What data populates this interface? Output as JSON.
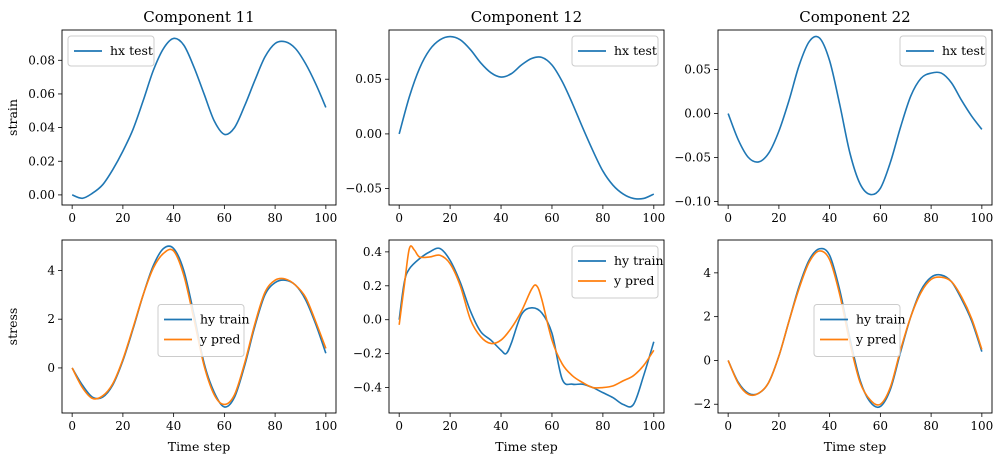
{
  "chart_data": [
    {
      "type": "line",
      "id": "p11",
      "title": "Component 11",
      "xlabel": "",
      "ylabel": "strain",
      "xlim": [
        -4,
        104
      ],
      "ylim": [
        -0.006,
        0.098
      ],
      "xticks": [
        0,
        20,
        40,
        60,
        80,
        100
      ],
      "yticks": [
        0.0,
        0.02,
        0.04,
        0.06,
        0.08
      ],
      "ytick_labels": [
        "0.00",
        "0.02",
        "0.04",
        "0.06",
        "0.08"
      ],
      "legend": "top-left",
      "series": [
        {
          "name": "hx test",
          "color": "#1f77b4",
          "x": [
            0,
            4,
            8,
            12,
            16,
            20,
            24,
            28,
            32,
            36,
            40,
            44,
            48,
            52,
            56,
            60,
            64,
            68,
            72,
            76,
            80,
            84,
            88,
            92,
            96,
            100
          ],
          "y": [
            0.0,
            -0.002,
            0.001,
            0.006,
            0.015,
            0.026,
            0.039,
            0.056,
            0.074,
            0.087,
            0.093,
            0.089,
            0.076,
            0.06,
            0.044,
            0.036,
            0.04,
            0.053,
            0.068,
            0.082,
            0.09,
            0.091,
            0.087,
            0.078,
            0.066,
            0.052
          ]
        }
      ]
    },
    {
      "type": "line",
      "id": "p12",
      "title": "Component 12",
      "xlabel": "",
      "ylabel": "",
      "xlim": [
        -4,
        104
      ],
      "ylim": [
        -0.065,
        0.095
      ],
      "xticks": [
        0,
        20,
        40,
        60,
        80,
        100
      ],
      "yticks": [
        0.05,
        0.0,
        -0.05
      ],
      "ytick_labels": [
        "0.05",
        "0.00",
        "−0.05"
      ],
      "legend": "top-right",
      "series": [
        {
          "name": "hx test",
          "color": "#1f77b4",
          "x": [
            0,
            4,
            8,
            12,
            16,
            20,
            24,
            28,
            32,
            36,
            40,
            44,
            48,
            52,
            56,
            60,
            64,
            68,
            72,
            76,
            80,
            84,
            88,
            92,
            96,
            100
          ],
          "y": [
            0.0,
            0.034,
            0.06,
            0.077,
            0.086,
            0.089,
            0.086,
            0.077,
            0.065,
            0.056,
            0.052,
            0.055,
            0.063,
            0.069,
            0.07,
            0.063,
            0.048,
            0.028,
            0.006,
            -0.015,
            -0.034,
            -0.047,
            -0.055,
            -0.059,
            -0.059,
            -0.055
          ]
        }
      ]
    },
    {
      "type": "line",
      "id": "p22",
      "title": "Component 22",
      "xlabel": "",
      "ylabel": "",
      "xlim": [
        -4,
        104
      ],
      "ylim": [
        -0.104,
        0.095
      ],
      "xticks": [
        0,
        20,
        40,
        60,
        80,
        100
      ],
      "yticks": [
        0.05,
        0.0,
        -0.05,
        -0.1
      ],
      "ytick_labels": [
        "0.05",
        "0.00",
        "−0.05",
        "−0.10"
      ],
      "legend": "top-right",
      "series": [
        {
          "name": "hx test",
          "color": "#1f77b4",
          "x": [
            0,
            4,
            8,
            12,
            16,
            20,
            24,
            28,
            32,
            36,
            40,
            44,
            48,
            52,
            56,
            60,
            64,
            68,
            72,
            76,
            80,
            84,
            88,
            92,
            96,
            100
          ],
          "y": [
            0.0,
            -0.03,
            -0.05,
            -0.055,
            -0.045,
            -0.02,
            0.015,
            0.055,
            0.082,
            0.086,
            0.06,
            0.01,
            -0.045,
            -0.08,
            -0.092,
            -0.085,
            -0.055,
            -0.015,
            0.02,
            0.04,
            0.046,
            0.046,
            0.035,
            0.015,
            -0.003,
            -0.018
          ]
        }
      ]
    },
    {
      "type": "line",
      "id": "s11",
      "title": "",
      "xlabel": "Time step",
      "ylabel": "stress",
      "xlim": [
        -4,
        104
      ],
      "ylim": [
        -1.85,
        5.25
      ],
      "xticks": [
        0,
        20,
        40,
        60,
        80,
        100
      ],
      "yticks": [
        0,
        2,
        4
      ],
      "ytick_labels": [
        "0",
        "2",
        "4"
      ],
      "legend": "center-right",
      "series": [
        {
          "name": "hy train",
          "color": "#1f77b4",
          "x": [
            0,
            4,
            8,
            12,
            16,
            20,
            24,
            28,
            32,
            36,
            40,
            44,
            48,
            52,
            56,
            60,
            64,
            68,
            72,
            76,
            80,
            84,
            88,
            92,
            96,
            100
          ],
          "y": [
            0.0,
            -0.7,
            -1.2,
            -1.2,
            -0.7,
            0.3,
            1.6,
            3.0,
            4.2,
            4.9,
            4.9,
            4.0,
            2.2,
            0.2,
            -1.0,
            -1.6,
            -1.2,
            0.1,
            1.7,
            3.0,
            3.5,
            3.6,
            3.4,
            2.8,
            1.8,
            0.6
          ]
        },
        {
          "name": "y pred",
          "color": "#ff7f0e",
          "x": [
            0,
            4,
            8,
            12,
            16,
            20,
            24,
            28,
            32,
            36,
            40,
            44,
            48,
            52,
            56,
            60,
            64,
            68,
            72,
            76,
            80,
            84,
            88,
            92,
            96,
            100
          ],
          "y": [
            0.0,
            -0.8,
            -1.25,
            -1.15,
            -0.65,
            0.35,
            1.65,
            3.0,
            4.1,
            4.7,
            4.8,
            3.8,
            2.0,
            0.1,
            -1.1,
            -1.5,
            -1.1,
            0.2,
            1.8,
            3.1,
            3.6,
            3.65,
            3.4,
            2.9,
            1.9,
            0.8
          ]
        }
      ]
    },
    {
      "type": "line",
      "id": "s12",
      "title": "",
      "xlabel": "Time step",
      "ylabel": "",
      "xlim": [
        -4,
        104
      ],
      "ylim": [
        -0.55,
        0.47
      ],
      "xticks": [
        0,
        20,
        40,
        60,
        80,
        100
      ],
      "yticks": [
        0.4,
        0.2,
        0.0,
        -0.2,
        -0.4
      ],
      "ytick_labels": [
        "0.4",
        "0.2",
        "0.0",
        "−0.2",
        "−0.4"
      ],
      "legend": "top-right",
      "series": [
        {
          "name": "hy train",
          "color": "#1f77b4",
          "x": [
            0,
            2,
            4,
            8,
            12,
            16,
            20,
            24,
            28,
            32,
            36,
            40,
            42,
            44,
            48,
            52,
            56,
            60,
            64,
            68,
            72,
            76,
            80,
            84,
            88,
            92,
            96,
            100
          ],
          "y": [
            0.0,
            0.22,
            0.3,
            0.36,
            0.4,
            0.42,
            0.35,
            0.22,
            0.05,
            -0.07,
            -0.12,
            -0.18,
            -0.2,
            -0.14,
            0.03,
            0.07,
            0.04,
            -0.08,
            -0.35,
            -0.38,
            -0.38,
            -0.4,
            -0.43,
            -0.46,
            -0.5,
            -0.5,
            -0.33,
            -0.13
          ]
        },
        {
          "name": "y pred",
          "color": "#ff7f0e",
          "x": [
            0,
            2,
            4,
            6,
            8,
            12,
            16,
            20,
            24,
            28,
            32,
            36,
            40,
            44,
            48,
            52,
            54,
            56,
            60,
            64,
            68,
            72,
            76,
            80,
            84,
            88,
            92,
            96,
            100
          ],
          "y": [
            -0.03,
            0.2,
            0.42,
            0.41,
            0.37,
            0.37,
            0.38,
            0.33,
            0.2,
            0.0,
            -0.1,
            -0.14,
            -0.12,
            -0.05,
            0.05,
            0.18,
            0.2,
            0.12,
            -0.12,
            -0.26,
            -0.33,
            -0.37,
            -0.4,
            -0.4,
            -0.39,
            -0.36,
            -0.33,
            -0.27,
            -0.18
          ]
        }
      ]
    },
    {
      "type": "line",
      "id": "s22",
      "title": "",
      "xlabel": "Time step",
      "ylabel": "",
      "xlim": [
        -4,
        104
      ],
      "ylim": [
        -2.4,
        5.5
      ],
      "xticks": [
        0,
        20,
        40,
        60,
        80,
        100
      ],
      "yticks": [
        4,
        2,
        0,
        -2
      ],
      "ytick_labels": [
        "4",
        "2",
        "0",
        "−2"
      ],
      "legend": "center-right",
      "series": [
        {
          "name": "hy train",
          "color": "#1f77b4",
          "x": [
            0,
            4,
            8,
            12,
            16,
            20,
            24,
            28,
            32,
            36,
            40,
            44,
            48,
            52,
            56,
            60,
            64,
            68,
            72,
            76,
            80,
            84,
            88,
            92,
            96,
            100
          ],
          "y": [
            0.0,
            -1.0,
            -1.5,
            -1.5,
            -1.0,
            0.2,
            1.8,
            3.4,
            4.6,
            5.1,
            4.8,
            3.2,
            1.0,
            -0.9,
            -1.9,
            -2.1,
            -1.3,
            0.4,
            2.0,
            3.2,
            3.8,
            3.9,
            3.6,
            2.8,
            1.8,
            0.4
          ]
        },
        {
          "name": "y pred",
          "color": "#ff7f0e",
          "x": [
            0,
            4,
            8,
            12,
            16,
            20,
            24,
            28,
            32,
            36,
            40,
            44,
            48,
            52,
            56,
            60,
            64,
            68,
            72,
            76,
            80,
            84,
            88,
            92,
            96,
            100
          ],
          "y": [
            0.0,
            -1.05,
            -1.55,
            -1.5,
            -1.0,
            0.2,
            1.8,
            3.3,
            4.5,
            5.0,
            4.6,
            3.0,
            0.8,
            -1.0,
            -1.8,
            -2.0,
            -1.2,
            0.5,
            2.0,
            3.1,
            3.7,
            3.8,
            3.6,
            2.9,
            1.9,
            0.5
          ]
        }
      ]
    }
  ]
}
